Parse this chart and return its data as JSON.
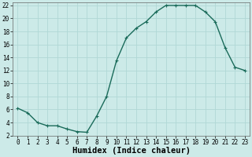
{
  "x": [
    0,
    1,
    2,
    3,
    4,
    5,
    6,
    7,
    8,
    9,
    10,
    11,
    12,
    13,
    14,
    15,
    16,
    17,
    18,
    19,
    20,
    21,
    22,
    23
  ],
  "y": [
    6.2,
    5.5,
    4.0,
    3.5,
    3.5,
    3.0,
    2.6,
    2.5,
    5.0,
    8.0,
    13.5,
    17.0,
    18.5,
    19.5,
    21.0,
    22.0,
    22.0,
    22.0,
    22.0,
    21.0,
    19.5,
    15.5,
    12.5,
    12.0
  ],
  "line_color": "#1a6b5a",
  "marker": "+",
  "marker_size": 3.5,
  "line_width": 1.0,
  "xlabel": "Humidex (Indice chaleur)",
  "xlim": [
    -0.5,
    23.5
  ],
  "ylim": [
    2,
    22.5
  ],
  "yticks": [
    2,
    4,
    6,
    8,
    10,
    12,
    14,
    16,
    18,
    20,
    22
  ],
  "xticks": [
    0,
    1,
    2,
    3,
    4,
    5,
    6,
    7,
    8,
    9,
    10,
    11,
    12,
    13,
    14,
    15,
    16,
    17,
    18,
    19,
    20,
    21,
    22,
    23
  ],
  "bg_color": "#cceae8",
  "grid_color": "#b0d8d6",
  "tick_label_fontsize": 5.5,
  "xlabel_fontsize": 7.5
}
